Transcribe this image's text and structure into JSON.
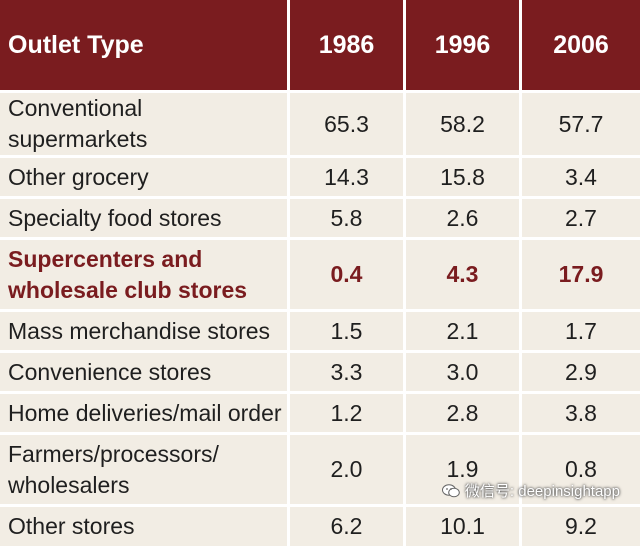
{
  "chart_data": {
    "type": "table",
    "columns": [
      "Outlet Type",
      "1986",
      "1996",
      "2006"
    ],
    "rows": [
      {
        "label": "Conventional supermarkets",
        "values": [
          "65.3",
          "58.2",
          "57.7"
        ],
        "highlight": false
      },
      {
        "label": "Other grocery",
        "values": [
          "14.3",
          "15.8",
          "3.4"
        ],
        "highlight": false
      },
      {
        "label": "Specialty food stores",
        "values": [
          "5.8",
          "2.6",
          "2.7"
        ],
        "highlight": false
      },
      {
        "label": "Supercenters and wholesale club stores",
        "values": [
          "0.4",
          "4.3",
          "17.9"
        ],
        "highlight": true
      },
      {
        "label": "Mass merchandise stores",
        "values": [
          "1.5",
          "2.1",
          "1.7"
        ],
        "highlight": false
      },
      {
        "label": "Convenience stores",
        "values": [
          "3.3",
          "3.0",
          "2.9"
        ],
        "highlight": false
      },
      {
        "label": "Home deliveries/mail order",
        "values": [
          "1.2",
          "2.8",
          "3.8"
        ],
        "highlight": false
      },
      {
        "label": "Farmers/processors/ wholesalers",
        "values": [
          "2.0",
          "1.9",
          "0.8"
        ],
        "highlight": false
      },
      {
        "label": "Other stores",
        "values": [
          "6.2",
          "10.1",
          "9.2"
        ],
        "highlight": false
      }
    ],
    "header_color": "#7a1c1f",
    "row_color": "#f2ede4",
    "highlight_text_color": "#7a1c1f"
  },
  "watermark": {
    "text": "微信号: deepinsightapp",
    "icon": "wechat-icon"
  }
}
